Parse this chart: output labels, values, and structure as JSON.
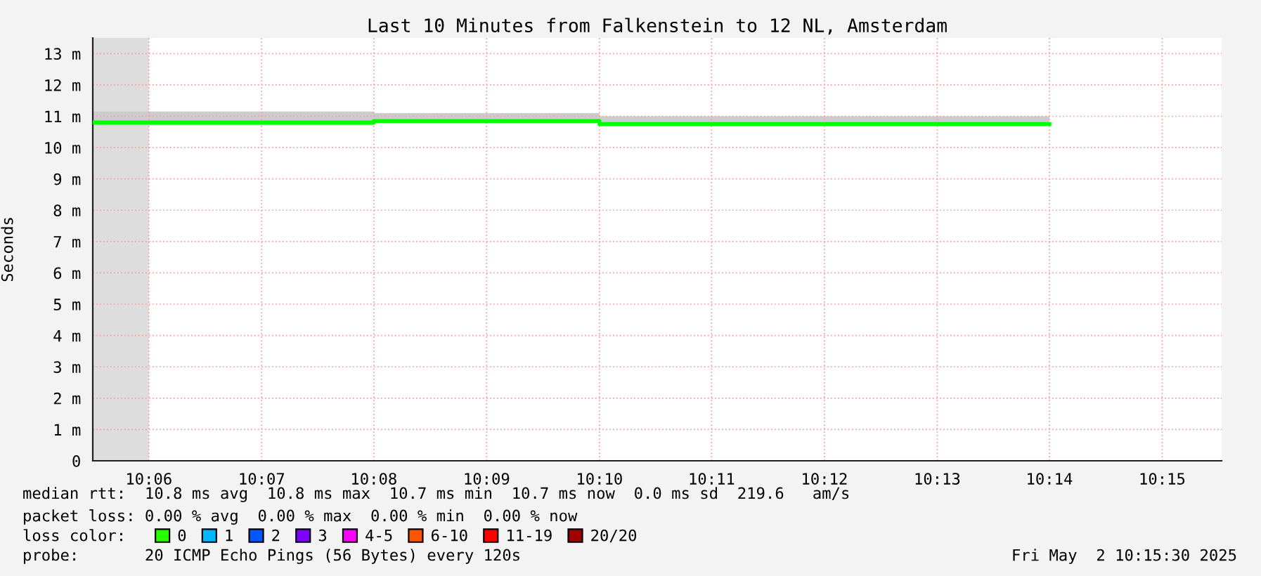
{
  "chart_data": {
    "type": "step",
    "title": "Last 10 Minutes from Falkenstein to 12 NL, Amsterdam",
    "ylabel": "Seconds",
    "xlim": [
      10.0917,
      10.2588
    ],
    "ylim": [
      0,
      13.5
    ],
    "xticks": [
      {
        "value": 10.1,
        "label": "10:06"
      },
      {
        "value": 10.1167,
        "label": "10:07"
      },
      {
        "value": 10.1333,
        "label": "10:08"
      },
      {
        "value": 10.15,
        "label": "10:09"
      },
      {
        "value": 10.1667,
        "label": "10:10"
      },
      {
        "value": 10.1833,
        "label": "10:11"
      },
      {
        "value": 10.2,
        "label": "10:12"
      },
      {
        "value": 10.2167,
        "label": "10:13"
      },
      {
        "value": 10.2333,
        "label": "10:14"
      },
      {
        "value": 10.25,
        "label": "10:15"
      }
    ],
    "yticks": [
      0,
      {
        "value": 1,
        "label": "1 m"
      },
      {
        "value": 2,
        "label": "2 m"
      },
      {
        "value": 3,
        "label": "3 m"
      },
      {
        "value": 4,
        "label": "4 m"
      },
      {
        "value": 5,
        "label": "5 m"
      },
      {
        "value": 6,
        "label": "6 m"
      },
      {
        "value": 7,
        "label": "7 m"
      },
      {
        "value": 8,
        "label": "8 m"
      },
      {
        "value": 9,
        "label": "9 m"
      },
      {
        "value": 10,
        "label": "10 m"
      },
      {
        "value": 11,
        "label": "11 m"
      },
      {
        "value": 12,
        "label": "12 m"
      },
      {
        "value": 13,
        "label": "13 m"
      }
    ],
    "grid": true,
    "x": [
      10.0917,
      10.1333,
      10.1667,
      10.2333
    ],
    "series": [
      {
        "color": "#00ff00",
        "values": [
          10.8,
          10.85,
          10.75,
          10.75
        ],
        "lower": [
          10.7,
          10.8,
          10.7,
          10.7
        ],
        "upper": [
          11.15,
          11.1,
          11.0,
          11.0
        ]
      },
      {
        "name": "0",
        "color": "#26ff00",
        "values": [
          null,
          null,
          null,
          null
        ]
      },
      {
        "name": "1",
        "color": "#00b8ff",
        "values": [
          null,
          null,
          null,
          null
        ]
      },
      {
        "name": "2",
        "color": "#0059ff",
        "values": [
          null,
          null,
          null,
          null
        ]
      },
      {
        "name": "3",
        "color": "#7e00ff",
        "values": [
          null,
          null,
          null,
          null
        ]
      },
      {
        "name": "4-5",
        "color": "#ff00ff",
        "values": [
          null,
          null,
          null,
          null
        ]
      },
      {
        "name": "6-10",
        "color": "#ff5500",
        "values": [
          null,
          null,
          null,
          null
        ]
      },
      {
        "name": "11-19",
        "color": "#ff0000",
        "values": [
          null,
          null,
          null,
          null
        ]
      },
      {
        "name": "20/20",
        "color": "#a10000",
        "values": [
          null,
          null,
          null,
          null
        ]
      }
    ],
    "legend": "bottom",
    "legend_title": "loss color:",
    "bands": [
      {
        "axis": "x",
        "from": 10.0917,
        "to": 10.1,
        "color": "#dddddd"
      }
    ],
    "annotations": [
      "median rtt:  10.8 ms avg  10.8 ms max  10.7 ms min  10.7 ms now  0.0 ms sd  219.6   am/s",
      "packet loss: 0.00 % avg  0.00 % max  0.00 % min  0.00 % now",
      "probe:       20 ICMP Echo Pings (56 Bytes) every 120s",
      "Fri May  2 10:15:30 2025"
    ]
  }
}
